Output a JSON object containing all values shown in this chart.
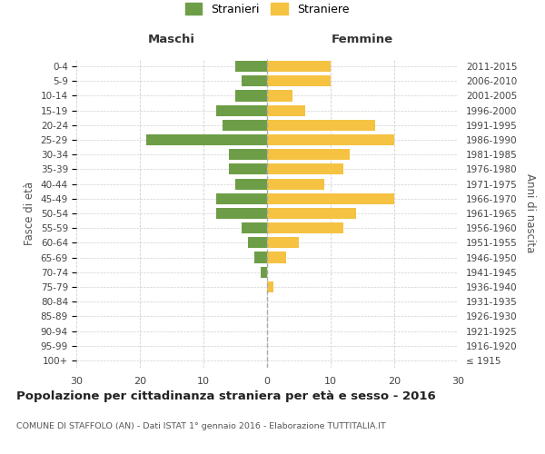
{
  "age_groups": [
    "100+",
    "95-99",
    "90-94",
    "85-89",
    "80-84",
    "75-79",
    "70-74",
    "65-69",
    "60-64",
    "55-59",
    "50-54",
    "45-49",
    "40-44",
    "35-39",
    "30-34",
    "25-29",
    "20-24",
    "15-19",
    "10-14",
    "5-9",
    "0-4"
  ],
  "birth_years": [
    "≤ 1915",
    "1916-1920",
    "1921-1925",
    "1926-1930",
    "1931-1935",
    "1936-1940",
    "1941-1945",
    "1946-1950",
    "1951-1955",
    "1956-1960",
    "1961-1965",
    "1966-1970",
    "1971-1975",
    "1976-1980",
    "1981-1985",
    "1986-1990",
    "1991-1995",
    "1996-2000",
    "2001-2005",
    "2006-2010",
    "2011-2015"
  ],
  "males": [
    0,
    0,
    0,
    0,
    0,
    0,
    1,
    2,
    3,
    4,
    8,
    8,
    5,
    6,
    6,
    19,
    7,
    8,
    5,
    4,
    5
  ],
  "females": [
    0,
    0,
    0,
    0,
    0,
    1,
    0,
    3,
    5,
    12,
    14,
    20,
    9,
    12,
    13,
    20,
    17,
    6,
    4,
    10,
    10
  ],
  "male_color": "#6d9e47",
  "female_color": "#f5c242",
  "title": "Popolazione per cittadinanza straniera per età e sesso - 2016",
  "subtitle": "COMUNE DI STAFFOLO (AN) - Dati ISTAT 1° gennaio 2016 - Elaborazione TUTTITALIA.IT",
  "legend_male": "Stranieri",
  "legend_female": "Straniere",
  "xlabel_left": "Maschi",
  "xlabel_right": "Femmine",
  "ylabel_left": "Fasce di età",
  "ylabel_right": "Anni di nascita",
  "xlim": 30,
  "bg_color": "#ffffff",
  "grid_color": "#d0d0d0"
}
